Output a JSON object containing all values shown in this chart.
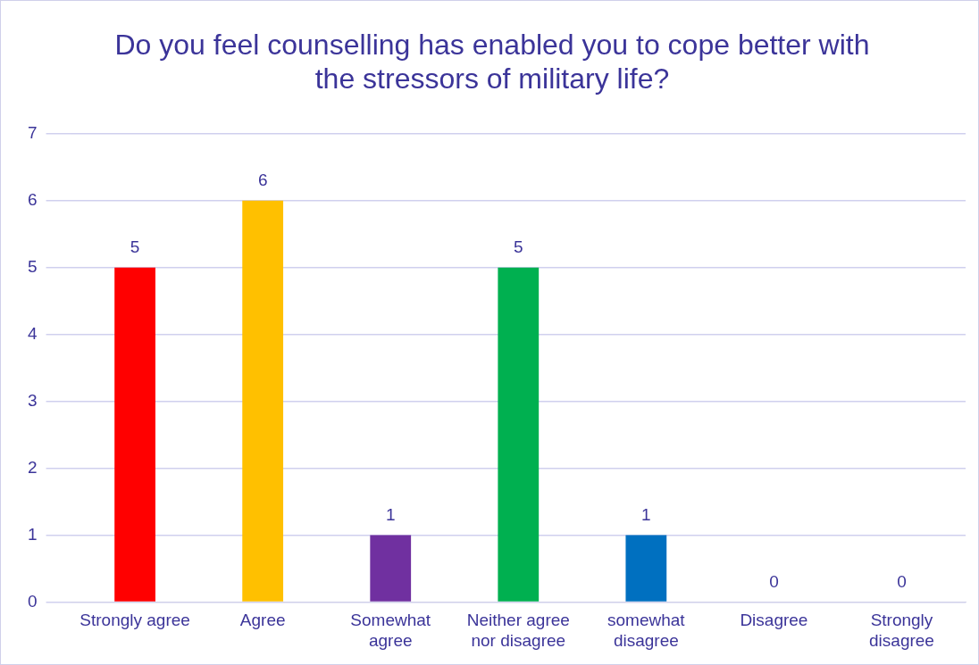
{
  "chart_data": {
    "type": "bar",
    "title": "Do you feel counselling has enabled you to cope better with the stressors of military life?",
    "categories": [
      "Strongly agree",
      "Agree",
      "Somewhat agree",
      "Neither agree nor disagree",
      "somewhat disagree",
      "Disagree",
      "Strongly disagree"
    ],
    "values": [
      5,
      6,
      1,
      5,
      1,
      0,
      0
    ],
    "colors": [
      "#ff0000",
      "#ffc000",
      "#7030a0",
      "#00b050",
      "#0070c0",
      "#4472c4",
      "#4472c4"
    ],
    "ylim": [
      0,
      7
    ],
    "yticks": [
      0,
      1,
      2,
      3,
      4,
      5,
      6,
      7
    ],
    "grid": "y",
    "legend": false,
    "data_labels": true
  }
}
